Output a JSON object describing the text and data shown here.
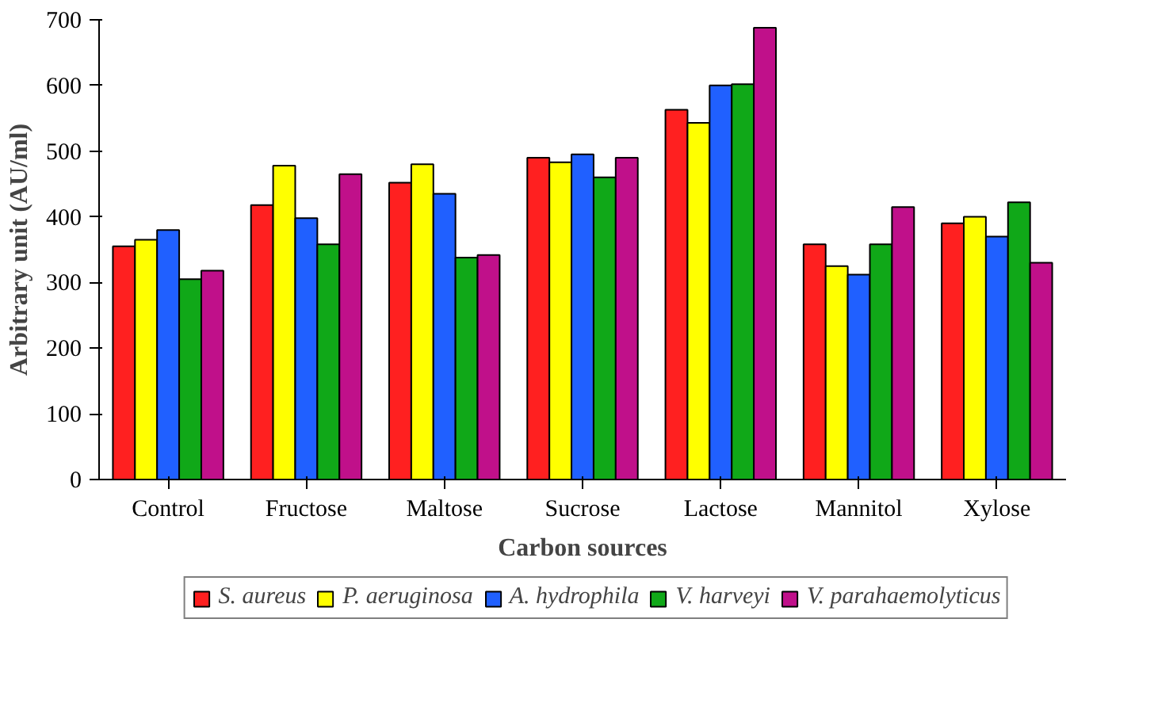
{
  "chart_data": {
    "type": "bar",
    "xlabel": "Carbon sources",
    "ylabel": "Arbitrary unit (AU/ml)",
    "categories": [
      "Control",
      "Fructose",
      "Maltose",
      "Sucrose",
      "Lactose",
      "Mannitol",
      "Xylose"
    ],
    "series": [
      {
        "name": "S. aureus",
        "color": "#ff2020",
        "values": [
          355,
          418,
          452,
          490,
          563,
          358,
          390
        ]
      },
      {
        "name": "P. aeruginosa",
        "color": "#ffff00",
        "values": [
          365,
          478,
          480,
          483,
          543,
          325,
          400
        ]
      },
      {
        "name": "A. hydrophila",
        "color": "#2060ff",
        "values": [
          380,
          398,
          435,
          495,
          600,
          312,
          370
        ]
      },
      {
        "name": "V. harveyi",
        "color": "#10a818",
        "values": [
          305,
          358,
          338,
          460,
          602,
          358,
          422
        ]
      },
      {
        "name": "V. parahaemolyticus",
        "color": "#c0108a",
        "values": [
          318,
          465,
          342,
          490,
          688,
          415,
          330
        ]
      }
    ],
    "ylim": [
      0,
      700
    ],
    "yticks": [
      0,
      100,
      200,
      300,
      400,
      500,
      600,
      700
    ],
    "grid": false,
    "legend": "bottom"
  }
}
